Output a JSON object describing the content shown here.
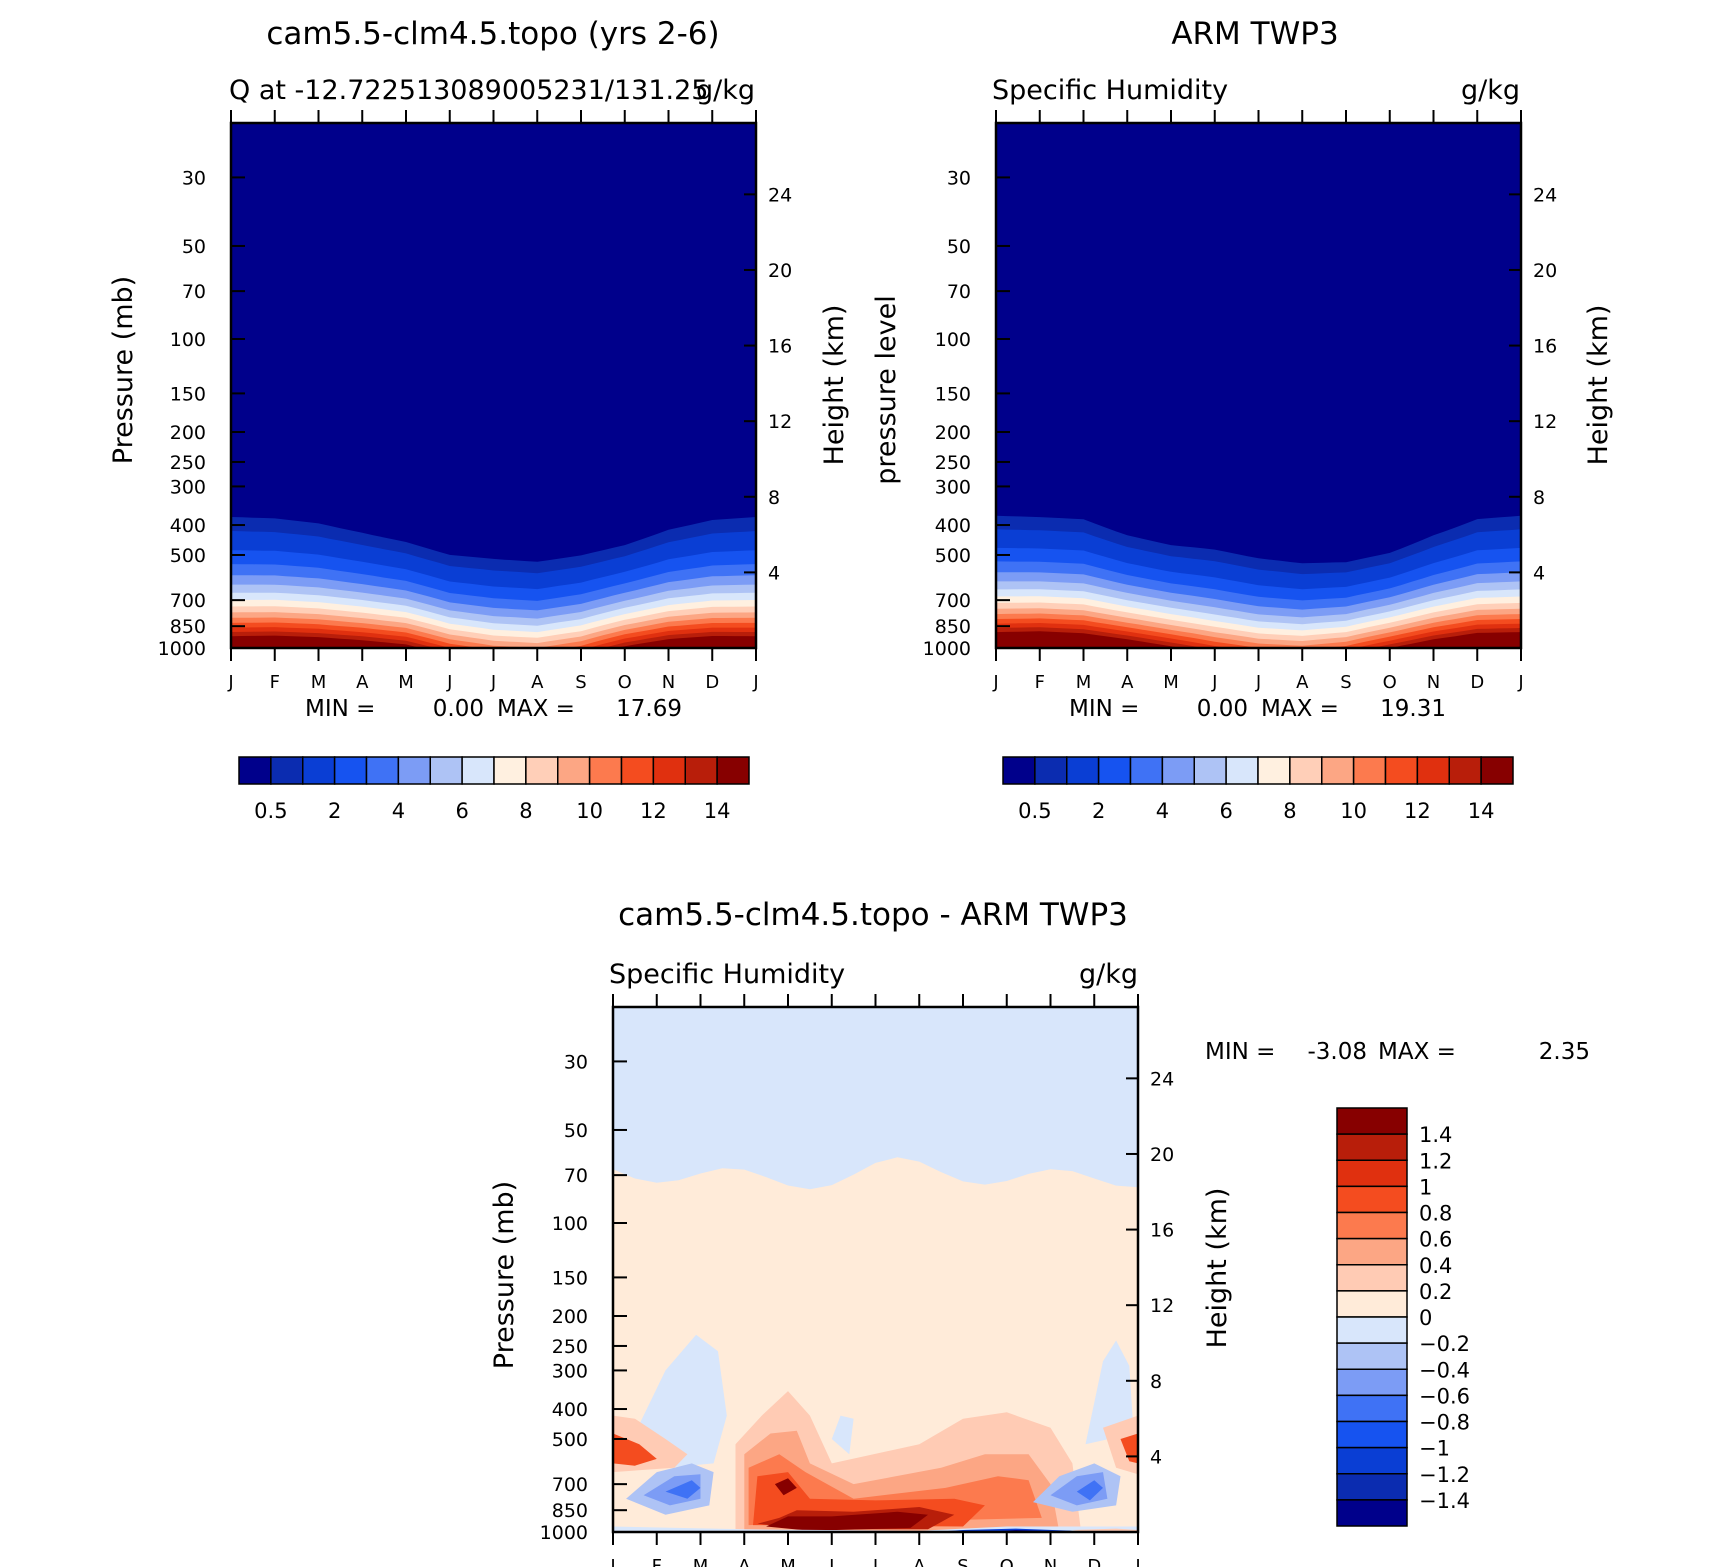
{
  "chart_data": [
    {
      "type": "heatmap",
      "title": "cam5.5-clm4.5.topo (yrs 2-6)",
      "subtitle": "Q at -12.722513089005231/131.25",
      "units": "g/kg",
      "ylabel": "Pressure (mb)",
      "ylabel_right": "Height (km)",
      "x_tick_labels": [
        "J",
        "F",
        "M",
        "A",
        "M",
        "J",
        "J",
        "A",
        "S",
        "O",
        "N",
        "D",
        "J"
      ],
      "y_ticks": [
        30,
        50,
        70,
        100,
        150,
        200,
        250,
        300,
        400,
        500,
        700,
        850,
        1000
      ],
      "height_ticks": [
        4,
        8,
        12,
        16,
        20,
        24
      ],
      "ylim": [
        1000,
        20
      ],
      "min_label": "MIN =",
      "min_value": "0.00",
      "max_label": "MAX =",
      "max_value": "17.69",
      "colorbar_levels": [
        0.5,
        1,
        2,
        3,
        4,
        5,
        6,
        7,
        8,
        9,
        10,
        11,
        12,
        13,
        14
      ],
      "colorbar_tick_labels": [
        "0.5",
        "2",
        "4",
        "6",
        "8",
        "10",
        "12",
        "14"
      ],
      "surface_q_by_month": [
        17.2,
        17.4,
        17.0,
        16.2,
        15.0,
        12.0,
        10.5,
        10.0,
        11.5,
        14.5,
        16.5,
        17.3,
        17.2
      ],
      "moist_layer_top_pressure": [
        300,
        305,
        320,
        350,
        380,
        420,
        430,
        440,
        420,
        390,
        340,
        310,
        300
      ]
    },
    {
      "type": "heatmap",
      "title": "ARM TWP3",
      "subtitle": "Specific Humidity",
      "units": "g/kg",
      "ylabel": "pressure level",
      "ylabel_right": "Height (km)",
      "x_tick_labels": [
        "J",
        "F",
        "M",
        "A",
        "M",
        "J",
        "J",
        "A",
        "S",
        "O",
        "N",
        "D",
        "J"
      ],
      "y_ticks": [
        30,
        50,
        70,
        100,
        150,
        200,
        250,
        300,
        400,
        500,
        700,
        850,
        1000
      ],
      "height_ticks": [
        4,
        8,
        12,
        16,
        20,
        24
      ],
      "ylim": [
        1000,
        20
      ],
      "min_label": "MIN =",
      "min_value": "0.00",
      "max_label": "MAX =",
      "max_value": "19.31",
      "colorbar_levels": [
        0.5,
        1,
        2,
        3,
        4,
        5,
        6,
        7,
        8,
        9,
        10,
        11,
        12,
        13,
        14
      ],
      "colorbar_tick_labels": [
        "0.5",
        "2",
        "4",
        "6",
        "8",
        "10",
        "12",
        "14"
      ],
      "surface_q_by_month": [
        18.5,
        18.8,
        18.2,
        16.5,
        14.5,
        12.5,
        11.0,
        10.5,
        11.5,
        14.0,
        16.5,
        18.3,
        18.5
      ],
      "moist_layer_top_pressure": [
        300,
        305,
        310,
        360,
        390,
        400,
        430,
        450,
        450,
        420,
        360,
        310,
        300
      ]
    },
    {
      "type": "heatmap",
      "title": "cam5.5-clm4.5.topo - ARM TWP3",
      "subtitle": "Specific Humidity",
      "units": "g/kg",
      "ylabel": "Pressure (mb)",
      "ylabel_right": "Height (km)",
      "x_tick_labels": [
        "J",
        "F",
        "M",
        "A",
        "M",
        "J",
        "J",
        "A",
        "S",
        "O",
        "N",
        "D",
        "J"
      ],
      "y_ticks": [
        30,
        50,
        70,
        100,
        150,
        200,
        250,
        300,
        400,
        500,
        700,
        850,
        1000
      ],
      "height_ticks": [
        4,
        8,
        12,
        16,
        20,
        24
      ],
      "ylim": [
        1000,
        20
      ],
      "min_label": "MIN =",
      "min_value": "-3.08",
      "max_label": "MAX =",
      "max_value": "2.35",
      "colorbar_levels": [
        -1.4,
        -1.2,
        -1,
        -0.8,
        -0.6,
        -0.4,
        -0.2,
        0,
        0.2,
        0.4,
        0.6,
        0.8,
        1,
        1.2,
        1.4
      ],
      "colorbar_tick_labels": [
        "1.4",
        "1.2",
        "1",
        "0.8",
        "0.6",
        "0.4",
        "0.2",
        "0",
        "−0.2",
        "−0.4",
        "−0.6",
        "−0.8",
        "−1",
        "−1.2",
        "−1.4"
      ],
      "upper_boundary_pressure_zero_contour": 70
    }
  ],
  "colors": {
    "humidity_scale": [
      "#00008b",
      "#0b2cb0",
      "#0a3ed4",
      "#1653f0",
      "#3f72f5",
      "#7c9cf5",
      "#aec3f5",
      "#d8e6fb",
      "#fff0e0",
      "#ffcfb8",
      "#fca684",
      "#fc7a4e",
      "#f44c1f",
      "#e0300f",
      "#b81e0a",
      "#870000"
    ],
    "difference_scale": [
      "#00008b",
      "#0b2cb0",
      "#0a3ed4",
      "#1653f0",
      "#3f72f5",
      "#7c9cf5",
      "#aec3f5",
      "#d8e6fb",
      "#ffebd9",
      "#ffcbb4",
      "#fca684",
      "#fc7a4e",
      "#f44c1f",
      "#e0300f",
      "#b81e0a",
      "#870000"
    ]
  }
}
